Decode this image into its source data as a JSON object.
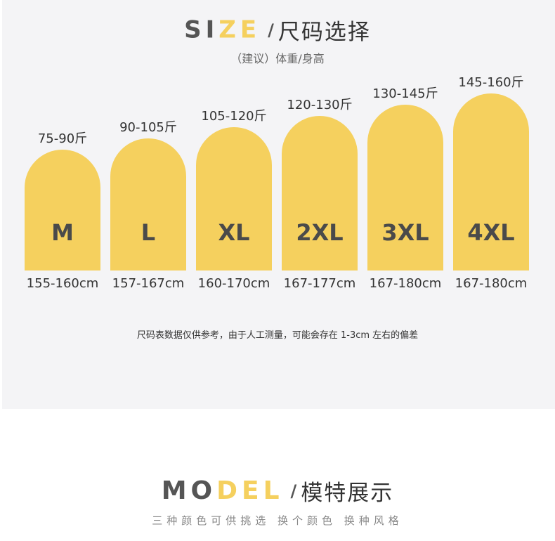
{
  "size_section": {
    "heading_en_dark": "SI",
    "heading_en_gold": "ZE",
    "heading_slash": "/",
    "heading_zh": "尺码选择",
    "subtitle": "（建议）体重/身高",
    "note": "尺码表数据仅供参考，由于人工测量，可能会存在 1-3cm 左右的偏差"
  },
  "model_section": {
    "heading_en_dark": "MO",
    "heading_en_gold": "DEL",
    "heading_slash": "/",
    "heading_zh": "模特展示",
    "subtitle": "三种颜色可供挑选 换个颜色 换种风格"
  },
  "colors": {
    "bar": "#f5d05e",
    "panel": "#f4f4f6",
    "text_dark": "#4a4a4a"
  },
  "chart_data": {
    "type": "bar",
    "categories": [
      "M",
      "L",
      "XL",
      "2XL",
      "3XL",
      "4XL"
    ],
    "weight_labels": [
      "75-90斤",
      "90-105斤",
      "105-120斤",
      "120-130斤",
      "130-145斤",
      "145-160斤"
    ],
    "height_labels": [
      "155-160cm",
      "157-167cm",
      "160-170cm",
      "167-177cm",
      "167-180cm",
      "167-180cm"
    ],
    "values": [
      1,
      2,
      3,
      4,
      5,
      6
    ]
  }
}
